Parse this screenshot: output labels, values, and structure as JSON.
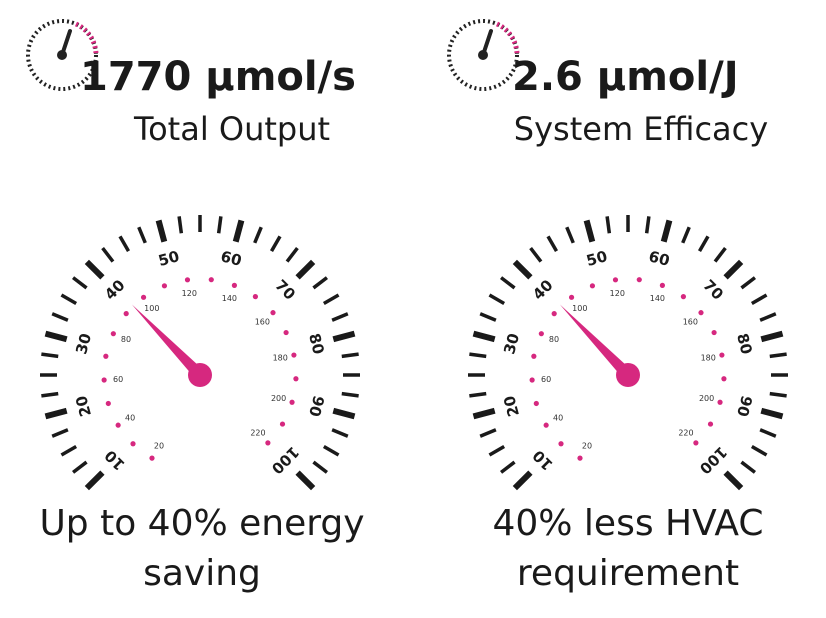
{
  "stats": [
    {
      "value": "1770 µmol/s",
      "label": "Total Output"
    },
    {
      "value": "2.6 µmol/J",
      "label": "System Efficacy"
    }
  ],
  "dial": {
    "outer": [
      "10",
      "20",
      "30",
      "40",
      "50",
      "60",
      "70",
      "80",
      "90",
      "100"
    ],
    "inner": [
      "20",
      "40",
      "60",
      "80",
      "100",
      "120",
      "140",
      "160",
      "180",
      "200",
      "220"
    ]
  },
  "captions": [
    [
      "Up to 40% energy",
      "saving"
    ],
    [
      "40% less HVAC",
      "requirement"
    ]
  ]
}
